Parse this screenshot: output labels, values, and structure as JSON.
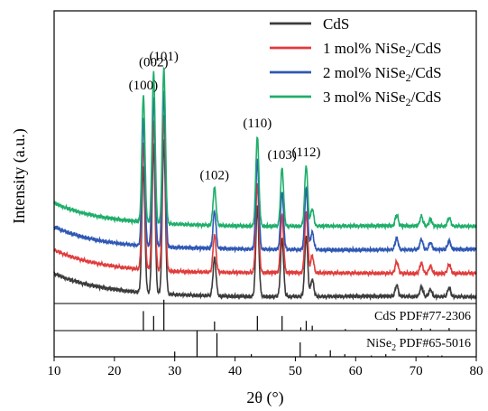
{
  "chart_data": {
    "type": "line",
    "xlabel": "2θ (°)",
    "ylabel": "Intensity (a.u.)",
    "xlim": [
      10,
      80
    ],
    "x_ticks": [
      10,
      20,
      30,
      40,
      50,
      60,
      70,
      80
    ],
    "legend_position": "top-right",
    "series": [
      {
        "name": "CdS",
        "color": "#3b3b3b"
      },
      {
        "name": "1 mol% NiSe",
        "name_sub": "2",
        "name_suffix": "/CdS",
        "color": "#e03c3c"
      },
      {
        "name": "2 mol% NiSe",
        "name_sub": "2",
        "name_suffix": "/CdS",
        "color": "#2f58b5"
      },
      {
        "name": "3 mol% NiSe",
        "name_sub": "2",
        "name_suffix": "/CdS",
        "color": "#1fae6a"
      }
    ],
    "series_offsets": [
      0,
      1,
      2,
      3
    ],
    "background": {
      "start_height": 0.8,
      "decay": 0.12,
      "floor": 0.05
    },
    "peaks": [
      {
        "two_theta": 24.8,
        "height": 4.4,
        "label": "(100)"
      },
      {
        "two_theta": 26.5,
        "height": 5.2,
        "label": "(002)"
      },
      {
        "two_theta": 28.2,
        "height": 5.4,
        "label": "(101)"
      },
      {
        "two_theta": 36.6,
        "height": 1.3,
        "label": "(102)"
      },
      {
        "two_theta": 43.7,
        "height": 3.1,
        "label": "(110)"
      },
      {
        "two_theta": 47.8,
        "height": 2.0,
        "label": "(103)"
      },
      {
        "two_theta": 51.8,
        "height": 2.1,
        "label": "(112)"
      },
      {
        "two_theta": 52.8,
        "height": 0.6,
        "label": ""
      },
      {
        "two_theta": 66.8,
        "height": 0.4,
        "label": ""
      },
      {
        "two_theta": 70.9,
        "height": 0.35,
        "label": ""
      },
      {
        "two_theta": 72.4,
        "height": 0.25,
        "label": ""
      },
      {
        "two_theta": 75.5,
        "height": 0.3,
        "label": ""
      }
    ],
    "reference_cds": {
      "label": "CdS PDF#77-2306",
      "lines": [
        {
          "two_theta": 24.8,
          "intensity": 0.6
        },
        {
          "two_theta": 26.5,
          "intensity": 0.45
        },
        {
          "two_theta": 28.2,
          "intensity": 0.95
        },
        {
          "two_theta": 36.6,
          "intensity": 0.28
        },
        {
          "two_theta": 43.7,
          "intensity": 0.45
        },
        {
          "two_theta": 47.8,
          "intensity": 0.45
        },
        {
          "two_theta": 50.9,
          "intensity": 0.1
        },
        {
          "two_theta": 51.8,
          "intensity": 0.3
        },
        {
          "two_theta": 52.8,
          "intensity": 0.15
        },
        {
          "two_theta": 58.3,
          "intensity": 0.05
        },
        {
          "two_theta": 66.8,
          "intensity": 0.08
        },
        {
          "two_theta": 69.3,
          "intensity": 0.05
        },
        {
          "two_theta": 70.9,
          "intensity": 0.08
        },
        {
          "two_theta": 72.4,
          "intensity": 0.06
        },
        {
          "two_theta": 75.5,
          "intensity": 0.08
        }
      ]
    },
    "reference_nise2": {
      "label_prefix": "NiSe",
      "label_sub": "2",
      "label_suffix": " PDF#65-5016",
      "lines": [
        {
          "two_theta": 30.0,
          "intensity": 0.2
        },
        {
          "two_theta": 33.7,
          "intensity": 1.0
        },
        {
          "two_theta": 37.0,
          "intensity": 0.9
        },
        {
          "two_theta": 42.7,
          "intensity": 0.1
        },
        {
          "two_theta": 50.8,
          "intensity": 0.55
        },
        {
          "two_theta": 53.4,
          "intensity": 0.1
        },
        {
          "two_theta": 55.8,
          "intensity": 0.25
        },
        {
          "two_theta": 58.2,
          "intensity": 0.1
        },
        {
          "two_theta": 62.6,
          "intensity": 0.05
        },
        {
          "two_theta": 65.0,
          "intensity": 0.1
        },
        {
          "two_theta": 72.0,
          "intensity": 0.05
        },
        {
          "two_theta": 74.3,
          "intensity": 0.05
        }
      ]
    }
  }
}
